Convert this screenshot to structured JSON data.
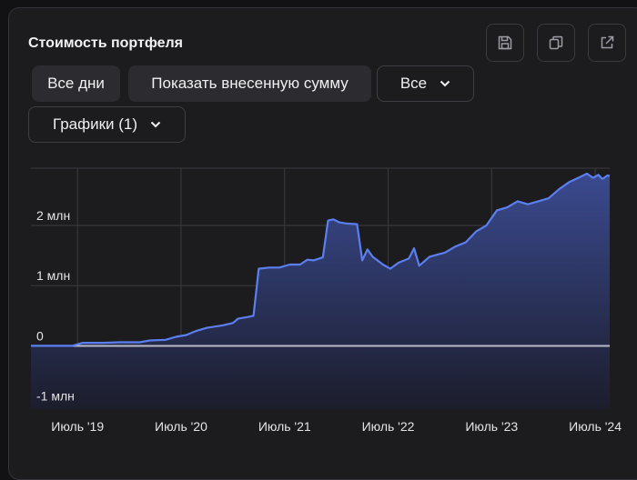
{
  "card": {
    "title": "Стоимость портфеля",
    "icons": [
      "save-icon",
      "copy-icon",
      "external-link-icon"
    ]
  },
  "filters": {
    "all_days_label": "Все дни",
    "show_deposits_label": "Показать внесенную сумму",
    "period_select_value": "Все",
    "charts_select_value": "Графики (1)"
  },
  "colors": {
    "line": "#5b7ff0",
    "area_top": "#3a4a8f",
    "area_bottom": "#1c1d2c",
    "zero_line": "#b9bbc8",
    "grid": "#3a3a40"
  },
  "chart_data": {
    "type": "area",
    "title": "",
    "xlabel": "",
    "ylabel": "",
    "ylim": [
      -1.05,
      2.95
    ],
    "yticks": [
      {
        "value": 2,
        "label": "2 млн"
      },
      {
        "value": 1,
        "label": "1 млн"
      },
      {
        "value": 0,
        "label": "0"
      },
      {
        "value": -1,
        "label": "-1 млн"
      }
    ],
    "xticks": [
      {
        "value": 2019.5,
        "label": "Июль '19"
      },
      {
        "value": 2020.5,
        "label": "Июль '20"
      },
      {
        "value": 2021.5,
        "label": "Июль '21"
      },
      {
        "value": 2022.5,
        "label": "Июль '22"
      },
      {
        "value": 2023.5,
        "label": "Июль '23"
      },
      {
        "value": 2024.5,
        "label": "Июль '24"
      }
    ],
    "xlim": [
      2019.05,
      2024.64
    ],
    "grid": true,
    "series": [
      {
        "values_unit": "млн",
        "points": [
          [
            2019.05,
            0.0
          ],
          [
            2019.45,
            0.0
          ],
          [
            2019.55,
            0.05
          ],
          [
            2019.75,
            0.05
          ],
          [
            2019.9,
            0.06
          ],
          [
            2020.1,
            0.06
          ],
          [
            2020.2,
            0.09
          ],
          [
            2020.35,
            0.1
          ],
          [
            2020.45,
            0.15
          ],
          [
            2020.55,
            0.18
          ],
          [
            2020.65,
            0.25
          ],
          [
            2020.75,
            0.3
          ],
          [
            2020.9,
            0.34
          ],
          [
            2021.0,
            0.38
          ],
          [
            2021.05,
            0.45
          ],
          [
            2021.15,
            0.48
          ],
          [
            2021.2,
            0.5
          ],
          [
            2021.25,
            1.28
          ],
          [
            2021.35,
            1.3
          ],
          [
            2021.45,
            1.3
          ],
          [
            2021.55,
            1.35
          ],
          [
            2021.65,
            1.35
          ],
          [
            2021.72,
            1.43
          ],
          [
            2021.78,
            1.42
          ],
          [
            2021.87,
            1.47
          ],
          [
            2021.92,
            2.08
          ],
          [
            2021.97,
            2.1
          ],
          [
            2022.03,
            2.05
          ],
          [
            2022.1,
            2.03
          ],
          [
            2022.2,
            2.02
          ],
          [
            2022.25,
            1.42
          ],
          [
            2022.3,
            1.6
          ],
          [
            2022.35,
            1.48
          ],
          [
            2022.45,
            1.35
          ],
          [
            2022.52,
            1.28
          ],
          [
            2022.6,
            1.38
          ],
          [
            2022.7,
            1.45
          ],
          [
            2022.75,
            1.62
          ],
          [
            2022.8,
            1.33
          ],
          [
            2022.9,
            1.48
          ],
          [
            2023.05,
            1.55
          ],
          [
            2023.15,
            1.65
          ],
          [
            2023.25,
            1.72
          ],
          [
            2023.35,
            1.9
          ],
          [
            2023.45,
            2.0
          ],
          [
            2023.55,
            2.25
          ],
          [
            2023.65,
            2.3
          ],
          [
            2023.75,
            2.4
          ],
          [
            2023.85,
            2.35
          ],
          [
            2023.95,
            2.4
          ],
          [
            2024.05,
            2.45
          ],
          [
            2024.15,
            2.6
          ],
          [
            2024.25,
            2.72
          ],
          [
            2024.35,
            2.8
          ],
          [
            2024.42,
            2.86
          ],
          [
            2024.48,
            2.79
          ],
          [
            2024.53,
            2.84
          ],
          [
            2024.57,
            2.77
          ],
          [
            2024.62,
            2.83
          ],
          [
            2024.64,
            2.82
          ]
        ]
      }
    ]
  }
}
